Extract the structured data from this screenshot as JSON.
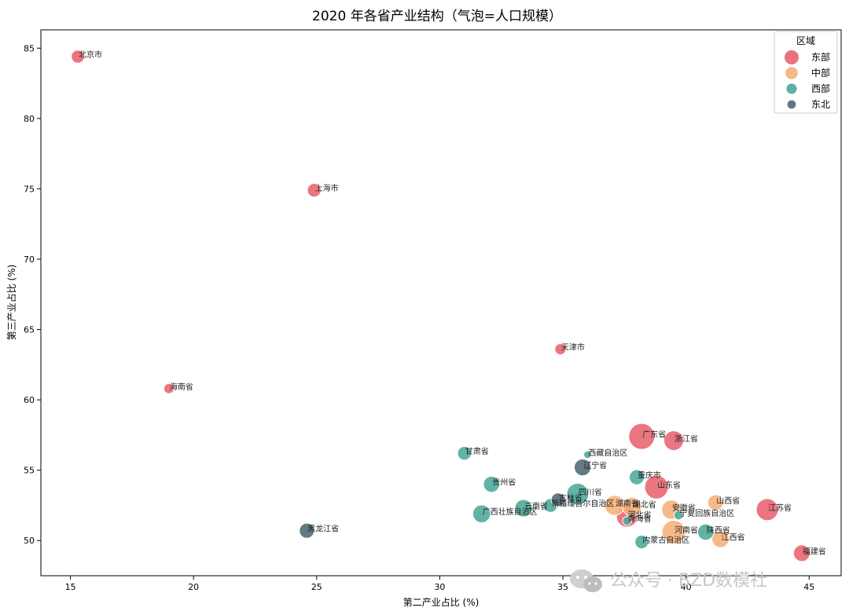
{
  "chart_data": {
    "type": "scatter",
    "title": "2020 年各省产业结构（气泡=人口规模）",
    "xlabel": "第二产业占比 (%)",
    "ylabel": "第三产业占比 (%)",
    "xlim": [
      13.8,
      46.3
    ],
    "ylim": [
      47.5,
      86.3
    ],
    "xticks": [
      15,
      20,
      25,
      30,
      35,
      40,
      45
    ],
    "yticks": [
      50,
      55,
      60,
      65,
      70,
      75,
      80,
      85
    ],
    "grid": false,
    "legend": {
      "title": "区域",
      "placement": "top-right",
      "items": [
        {
          "name": "东部",
          "color": "#e8636f"
        },
        {
          "name": "中部",
          "color": "#f5b07a"
        },
        {
          "name": "西部",
          "color": "#4aaa9a"
        },
        {
          "name": "东北",
          "color": "#506873"
        }
      ]
    },
    "points": [
      {
        "label": "北京市",
        "x": 15.3,
        "y": 84.4,
        "region": "东部",
        "population": 2189
      },
      {
        "label": "上海市",
        "x": 24.9,
        "y": 74.9,
        "region": "东部",
        "population": 2487
      },
      {
        "label": "天津市",
        "x": 34.9,
        "y": 63.6,
        "region": "东部",
        "population": 1387
      },
      {
        "label": "海南省",
        "x": 19.0,
        "y": 60.8,
        "region": "东部",
        "population": 1008
      },
      {
        "label": "广东省",
        "x": 38.2,
        "y": 57.4,
        "region": "东部",
        "population": 12601
      },
      {
        "label": "浙江省",
        "x": 39.5,
        "y": 57.1,
        "region": "东部",
        "population": 6457
      },
      {
        "label": "山东省",
        "x": 38.8,
        "y": 53.8,
        "region": "东部",
        "population": 10153
      },
      {
        "label": "江苏省",
        "x": 43.3,
        "y": 52.2,
        "region": "东部",
        "population": 8475
      },
      {
        "label": "福建省",
        "x": 44.7,
        "y": 49.1,
        "region": "东部",
        "population": 4154
      },
      {
        "label": "河北省",
        "x": 37.6,
        "y": 51.7,
        "region": "东部",
        "population": 7461
      },
      {
        "label": "湖南省",
        "x": 37.1,
        "y": 52.5,
        "region": "中部",
        "population": 6644
      },
      {
        "label": "湖北省",
        "x": 37.8,
        "y": 52.4,
        "region": "中部",
        "population": 5775
      },
      {
        "label": "安徽省",
        "x": 39.4,
        "y": 52.2,
        "region": "中部",
        "population": 6103
      },
      {
        "label": "山西省",
        "x": 41.2,
        "y": 52.7,
        "region": "中部",
        "population": 3492
      },
      {
        "label": "河南省",
        "x": 39.5,
        "y": 50.6,
        "region": "中部",
        "population": 9937
      },
      {
        "label": "江西省",
        "x": 41.4,
        "y": 50.1,
        "region": "中部",
        "population": 4519
      },
      {
        "label": "甘肃省",
        "x": 31.0,
        "y": 56.2,
        "region": "西部",
        "population": 2502
      },
      {
        "label": "西藏自治区",
        "x": 36.0,
        "y": 56.1,
        "region": "西部",
        "population": 365
      },
      {
        "label": "重庆市",
        "x": 38.0,
        "y": 54.5,
        "region": "西部",
        "population": 3205
      },
      {
        "label": "贵州省",
        "x": 32.1,
        "y": 54.0,
        "region": "西部",
        "population": 3856
      },
      {
        "label": "四川省",
        "x": 35.6,
        "y": 53.3,
        "region": "西部",
        "population": 8367
      },
      {
        "label": "新疆维吾尔自治区",
        "x": 34.5,
        "y": 52.5,
        "region": "西部",
        "population": 2585
      },
      {
        "label": "云南省",
        "x": 33.4,
        "y": 52.3,
        "region": "西部",
        "population": 4721
      },
      {
        "label": "广西壮族自治区",
        "x": 31.7,
        "y": 51.9,
        "region": "西部",
        "population": 5013
      },
      {
        "label": "宁夏回族自治区",
        "x": 39.7,
        "y": 51.8,
        "region": "西部",
        "population": 720
      },
      {
        "label": "青海省",
        "x": 37.6,
        "y": 51.4,
        "region": "西部",
        "population": 592
      },
      {
        "label": "陕西省",
        "x": 40.8,
        "y": 50.6,
        "region": "西部",
        "population": 3953
      },
      {
        "label": "内蒙古自治区",
        "x": 38.2,
        "y": 49.9,
        "region": "西部",
        "population": 2405
      },
      {
        "label": "辽宁省",
        "x": 35.8,
        "y": 55.2,
        "region": "东北",
        "population": 4259
      },
      {
        "label": "吉林省",
        "x": 34.8,
        "y": 52.9,
        "region": "东北",
        "population": 2407
      },
      {
        "label": "黑龙江省",
        "x": 24.6,
        "y": 50.7,
        "region": "东北",
        "population": 3185
      }
    ]
  },
  "watermark": {
    "text": "公众号 · BZD数模社",
    "icon": "wechat-icon"
  }
}
